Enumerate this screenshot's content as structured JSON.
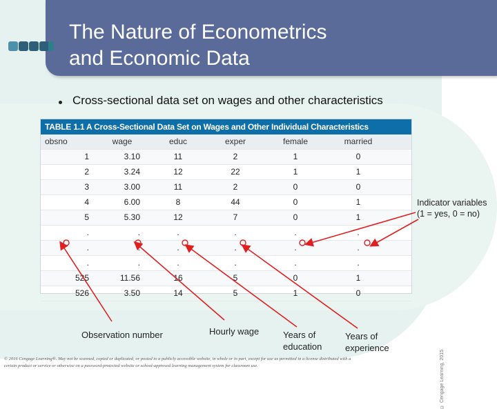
{
  "slide": {
    "title_line1": "The Nature of Econometrics",
    "title_line2": "and Economic Data",
    "bullet": "Cross-sectional data set on wages and other characteristics"
  },
  "table": {
    "caption": "TABLE 1.1  A Cross-Sectional Data Set on Wages and Other Individual Characteristics",
    "columns": [
      "obsno",
      "wage",
      "educ",
      "exper",
      "female",
      "married"
    ],
    "rows": [
      [
        "1",
        "3.10",
        "11",
        "2",
        "1",
        "0"
      ],
      [
        "2",
        "3.24",
        "12",
        "22",
        "1",
        "1"
      ],
      [
        "3",
        "3.00",
        "11",
        "2",
        "0",
        "0"
      ],
      [
        "4",
        "6.00",
        "8",
        "44",
        "0",
        "1"
      ],
      [
        "5",
        "5.30",
        "12",
        "7",
        "0",
        "1"
      ],
      [
        ".",
        ".",
        ".",
        ".",
        ".",
        "."
      ],
      [
        ".",
        ".",
        ".",
        ".",
        ".",
        "."
      ],
      [
        ".",
        ".",
        ".",
        ".",
        ".",
        "."
      ],
      [
        "525",
        "11.56",
        "16",
        "5",
        "0",
        "1"
      ],
      [
        "526",
        "3.50",
        "14",
        "5",
        "1",
        "0"
      ]
    ],
    "side_copyright": "© Cengage Learning, 2015"
  },
  "annotations": {
    "indicator_line1": "Indicator variables",
    "indicator_line2": "(1 = yes, 0 = no)",
    "observation": "Observation number",
    "hourly_wage": "Hourly wage",
    "education_line1": "Years of",
    "education_line2": "education",
    "experience_line1": "Years of",
    "experience_line2": "experience"
  },
  "footer": {
    "line1": "© 2016 Cengage Learning®. May not be scanned, copied or duplicated, or posted to a publicly accessible website, in whole or in part, except for use as permitted in a license distributed with a",
    "line2": "certain product or service or otherwise on a password-protected website or school-approved learning management system for classroom use."
  },
  "colors": {
    "title_bar": "#5a6b9a",
    "table_header": "#0e6ea7",
    "arrow": "#e02020"
  }
}
